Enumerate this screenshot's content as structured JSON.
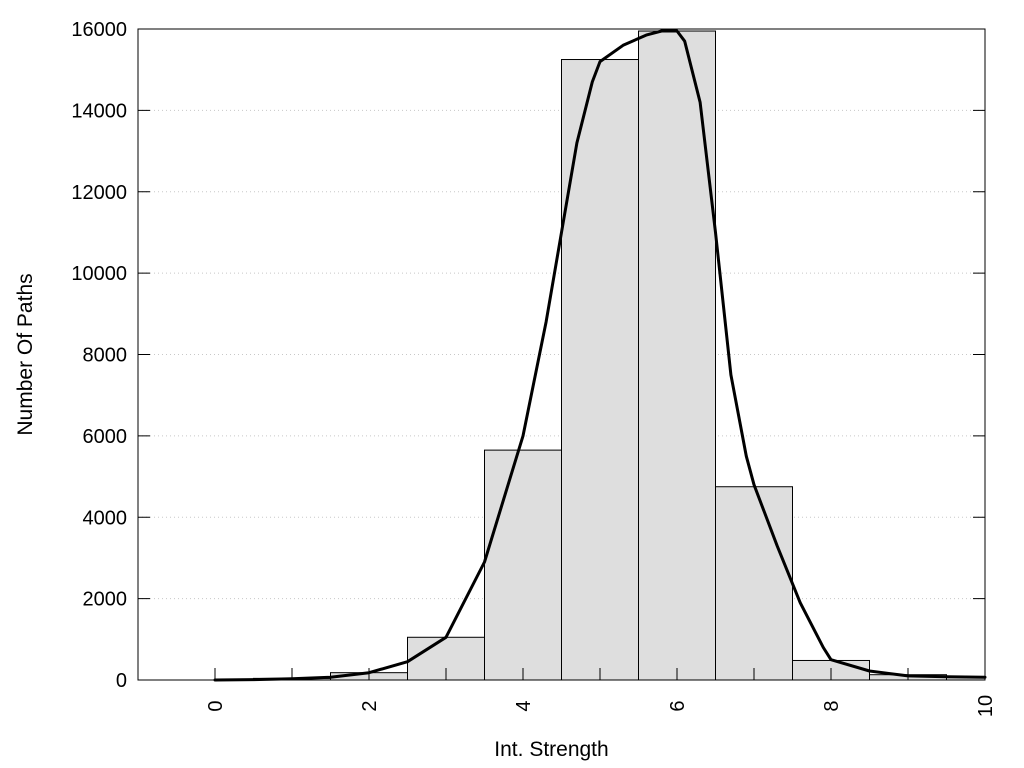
{
  "chart_data": {
    "type": "bar",
    "title": "",
    "xlabel": "Int. Strength",
    "ylabel": "Number Of Paths",
    "xlim": [
      -1,
      10
    ],
    "ylim": [
      0,
      16000
    ],
    "x_ticks": [
      0,
      2,
      4,
      6,
      8,
      10
    ],
    "x_tick_labels": [
      "0",
      "2",
      "4",
      "6",
      "8",
      "10"
    ],
    "x_minor_ticks": [
      0,
      1,
      2,
      3,
      4,
      5,
      6,
      7,
      8,
      9,
      10
    ],
    "y_ticks": [
      0,
      2000,
      4000,
      6000,
      8000,
      10000,
      12000,
      14000,
      16000
    ],
    "y_tick_labels": [
      "0",
      "2000",
      "4000",
      "6000",
      "8000",
      "10000",
      "12000",
      "14000",
      "16000"
    ],
    "grid": "horizontal-dotted",
    "legend": "none",
    "bar_width": 1,
    "bars": {
      "x": [
        0,
        1,
        2,
        3,
        4,
        5,
        6,
        7,
        8,
        9,
        10
      ],
      "values": [
        0,
        40,
        180,
        1050,
        5650,
        15250,
        15950,
        4750,
        480,
        130,
        70
      ]
    },
    "curve": {
      "x": [
        0,
        0.5,
        1,
        1.5,
        2,
        2.5,
        3,
        3.5,
        4,
        4.3,
        4.5,
        4.7,
        4.9,
        5,
        5.3,
        5.6,
        5.8,
        6,
        6.1,
        6.3,
        6.5,
        6.7,
        6.9,
        7,
        7.3,
        7.6,
        7.9,
        8,
        8.5,
        9,
        9.5,
        10
      ],
      "y": [
        0,
        10,
        30,
        70,
        180,
        450,
        1050,
        2900,
        6000,
        8800,
        11000,
        13200,
        14700,
        15200,
        15600,
        15850,
        15950,
        15950,
        15700,
        14200,
        11000,
        7500,
        5500,
        4800,
        3300,
        1900,
        800,
        500,
        220,
        100,
        80,
        70
      ],
      "color": "#000000"
    },
    "bar_fill": "#dedede",
    "bar_stroke": "#000000"
  }
}
